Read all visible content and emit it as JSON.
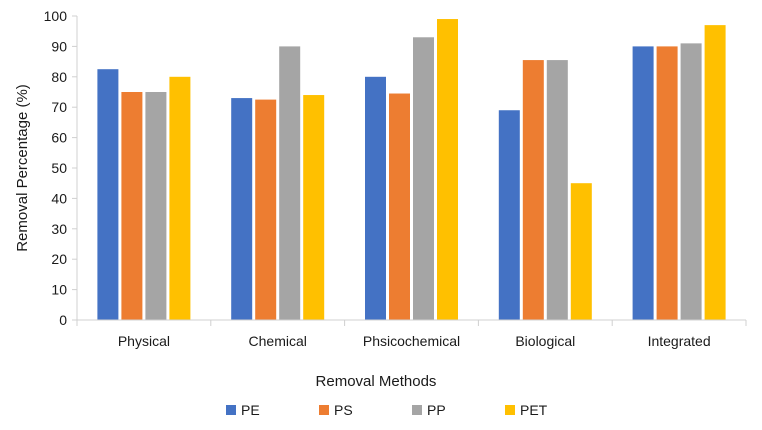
{
  "chart_data": {
    "type": "bar",
    "title": "",
    "xlabel": "Removal Methods",
    "ylabel": "Removal Percentage (%)",
    "ylim": [
      0,
      100
    ],
    "yticks": [
      0,
      10,
      20,
      30,
      40,
      50,
      60,
      70,
      80,
      90,
      100
    ],
    "grid": false,
    "legend_position": "bottom",
    "categories": [
      "Physical",
      "Chemical",
      "Phsicochemical",
      "Biological",
      "Integrated"
    ],
    "series": [
      {
        "name": "PE",
        "color": "#4472C4",
        "values": [
          82.5,
          73,
          80,
          69,
          90
        ]
      },
      {
        "name": "PS",
        "color": "#ED7D31",
        "values": [
          75,
          72.5,
          74.5,
          85.5,
          90
        ]
      },
      {
        "name": "PP",
        "color": "#A5A5A5",
        "values": [
          75,
          90,
          93,
          85.5,
          91
        ]
      },
      {
        "name": "PET",
        "color": "#FFC000",
        "values": [
          80,
          74,
          99,
          45,
          97
        ]
      }
    ]
  }
}
